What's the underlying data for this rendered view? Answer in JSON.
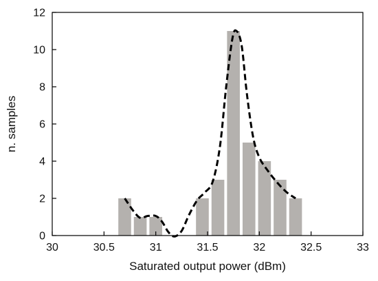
{
  "chart_data": {
    "type": "bar",
    "xlabel": "Saturated output power (dBm)",
    "ylabel": "n. samples",
    "xlim": [
      30,
      33
    ],
    "ylim": [
      0,
      12
    ],
    "xticks": [
      30,
      30.5,
      31,
      31.5,
      32,
      32.5,
      33
    ],
    "xtick_labels": [
      "30",
      "30.5",
      "31",
      "31.5",
      "32",
      "32.5",
      "33"
    ],
    "yticks": [
      0,
      2,
      4,
      6,
      8,
      10,
      12
    ],
    "ytick_labels": [
      "0",
      "2",
      "4",
      "6",
      "8",
      "10",
      "12"
    ],
    "bin_width": 0.15,
    "bins": [
      30.7,
      30.85,
      31.0,
      31.15,
      31.3,
      31.45,
      31.6,
      31.75,
      31.9,
      32.05,
      32.2,
      32.35
    ],
    "values": [
      2,
      1,
      1,
      0,
      0,
      2,
      3,
      11,
      5,
      4,
      3,
      2
    ],
    "bar_color": "#b4b1ae",
    "fit_curve": {
      "style": "dashed",
      "color": "#000000",
      "points": [
        [
          30.7,
          2.0
        ],
        [
          30.78,
          1.35
        ],
        [
          30.85,
          0.95
        ],
        [
          30.92,
          1.05
        ],
        [
          31.0,
          1.05
        ],
        [
          31.06,
          0.75
        ],
        [
          31.12,
          0.2
        ],
        [
          31.18,
          -0.05
        ],
        [
          31.25,
          0.25
        ],
        [
          31.32,
          1.1
        ],
        [
          31.4,
          1.9
        ],
        [
          31.47,
          2.3
        ],
        [
          31.55,
          2.9
        ],
        [
          31.62,
          4.8
        ],
        [
          31.68,
          8.0
        ],
        [
          31.74,
          10.6
        ],
        [
          31.78,
          11.0
        ],
        [
          31.83,
          10.2
        ],
        [
          31.88,
          7.6
        ],
        [
          31.94,
          5.3
        ],
        [
          32.0,
          4.2
        ],
        [
          32.08,
          3.5
        ],
        [
          32.18,
          2.8
        ],
        [
          32.27,
          2.3
        ],
        [
          32.35,
          2.0
        ]
      ]
    },
    "grid": false,
    "legend": "none"
  }
}
